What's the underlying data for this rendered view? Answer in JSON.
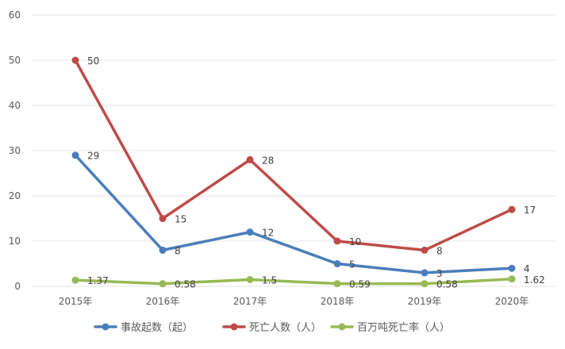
{
  "chart_data": {
    "type": "line",
    "categories": [
      "2015年",
      "2016年",
      "2017年",
      "2018年",
      "2019年",
      "2020年"
    ],
    "ylim": [
      0,
      60
    ],
    "yticks": [
      0,
      10,
      20,
      30,
      40,
      50,
      60
    ],
    "grid": true,
    "legend_position": "bottom",
    "series": [
      {
        "name": "事故起数（起）",
        "color": "#4a7ebb",
        "values": [
          29,
          8,
          12,
          5,
          3,
          4
        ],
        "labels": [
          "29",
          "8",
          "12",
          "5",
          "3",
          "4"
        ]
      },
      {
        "name": "死亡人数（人）",
        "color": "#be4b48",
        "values": [
          50,
          15,
          28,
          10,
          8,
          17
        ],
        "labels": [
          "50",
          "15",
          "28",
          "10",
          "8",
          "17"
        ]
      },
      {
        "name": "百万吨死亡率（人）",
        "color": "#98b954",
        "values": [
          1.37,
          0.58,
          1.5,
          0.59,
          0.58,
          1.62
        ],
        "labels": [
          "1.37",
          "0.58",
          "1.5",
          "0.59",
          "0.58",
          "1.62"
        ]
      }
    ]
  }
}
